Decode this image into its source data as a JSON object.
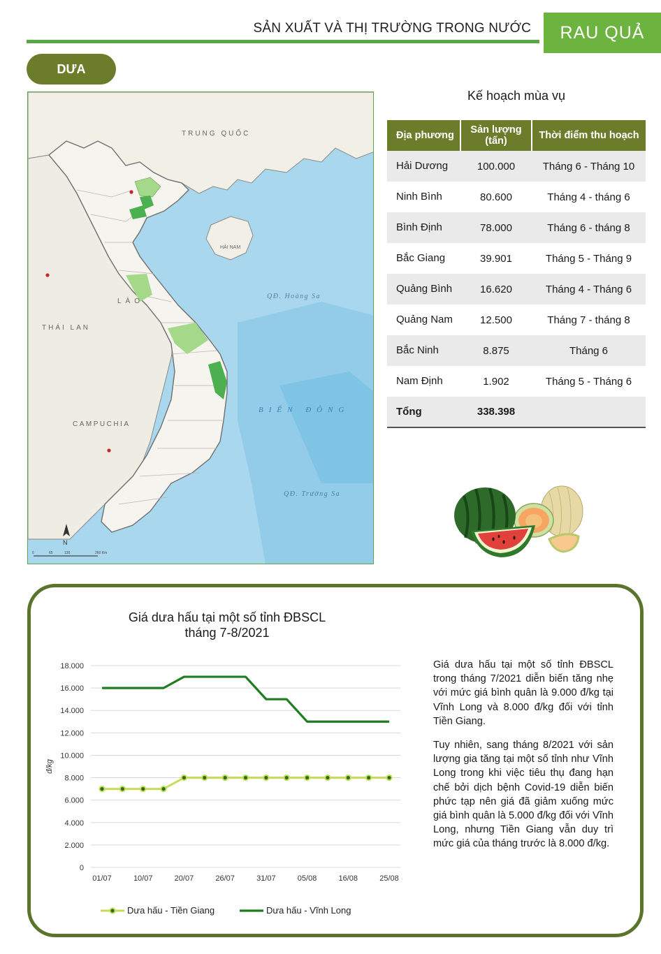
{
  "header": {
    "title": "SẢN XUẤT VÀ THỊ TRƯỜNG TRONG NƯỚC",
    "badge": "RAU QUẢ"
  },
  "section": {
    "label": "DƯA"
  },
  "map": {
    "labels": {
      "china": "TRUNG QUỐC",
      "hainan": "HẢI NAM",
      "hoang_sa": "QĐ. Hoàng Sa",
      "laos": "LÀO",
      "thailand": "THÁI LAN",
      "bien_dong": "BIỂN ĐÔNG",
      "cambodia": "CAMPUCHIA",
      "truong_sa": "QĐ. Trường Sa",
      "north": "N"
    },
    "scale_ticks": [
      "0",
      "65",
      "130",
      "260 Km"
    ],
    "colors": {
      "sea": "#a9d7ee",
      "land": "#f1efe6",
      "province_major": "#4caf50",
      "province_minor": "#a5d98a"
    }
  },
  "table": {
    "title": "Kế hoạch mùa vụ",
    "headers": [
      "Địa phương",
      "Sản lượng (tấn)",
      "Thời điểm thu hoạch"
    ],
    "rows": [
      [
        "Hải Dương",
        "100.000",
        "Tháng 6 - Tháng 10"
      ],
      [
        "Ninh Bình",
        "80.600",
        "Tháng 4 - tháng 6"
      ],
      [
        "Bình Định",
        "78.000",
        "Tháng 6 - tháng 8"
      ],
      [
        "Bắc Giang",
        "39.901",
        "Tháng 5 - Tháng 9"
      ],
      [
        "Quảng Bình",
        "16.620",
        "Tháng 4 - Tháng 6"
      ],
      [
        "Quảng Nam",
        "12.500",
        "Tháng 7 - tháng 8"
      ],
      [
        "Bắc Ninh",
        "8.875",
        "Tháng 6"
      ],
      [
        "Nam Định",
        "1.902",
        "Tháng 5 - Tháng 6"
      ]
    ],
    "total": [
      "Tổng",
      "338.398",
      ""
    ]
  },
  "chart_data": {
    "type": "line",
    "title": "Giá dưa hấu tại một số tỉnh ĐBSCL tháng 7-8/2021",
    "title_line1": "Giá dưa hấu tại một số tỉnh ĐBSCL",
    "title_line2": "tháng 7-8/2021",
    "ylabel": "đ/kg",
    "xlabel": "",
    "ylim": [
      0,
      18000
    ],
    "y_ticks": [
      "0",
      "2.000",
      "4.000",
      "6.000",
      "8.000",
      "10.000",
      "12.000",
      "14.000",
      "16.000",
      "18.000"
    ],
    "x_tick_labels": [
      "01/07",
      "10/07",
      "20/07",
      "26/07",
      "31/07",
      "05/08",
      "16/08",
      "25/08"
    ],
    "legend_position": "bottom",
    "series": [
      {
        "name": "Dưa hấu - Tiền Giang",
        "color": "#c6dc5a",
        "marker": "circle",
        "values": [
          7000,
          7000,
          7000,
          7000,
          8000,
          8000,
          8000,
          8000,
          8000,
          8000,
          8000,
          8000,
          8000,
          8000,
          8000
        ]
      },
      {
        "name": "Dưa hấu - Vĩnh Long",
        "color": "#1e7d1e",
        "marker": "none",
        "values": [
          16000,
          16000,
          16000,
          16000,
          17000,
          17000,
          17000,
          17000,
          15000,
          15000,
          13000,
          13000,
          13000,
          13000,
          13000
        ]
      }
    ]
  },
  "note": {
    "p1": "Giá dưa hấu tại một số tỉnh ĐBSCL trong tháng 7/2021 diễn biến tăng nhẹ với mức giá bình quân là 9.000 đ/kg tại Vĩnh Long và 8.000 đ/kg đối với tỉnh Tiền Giang.",
    "p2": "Tuy nhiên, sang tháng 8/2021 với sản lượng gia tăng tại một số tỉnh như Vĩnh Long trong khi việc tiêu thụ đang hạn chế bởi dịch bệnh Covid-19 diễn biến phức tạp nên giá đã giảm xuống mức giá bình quân là 5.000 đ/kg đối với Vĩnh Long, nhưng Tiền Giang vẫn duy trì mức giá của tháng trước là 8.000 đ/kg."
  }
}
